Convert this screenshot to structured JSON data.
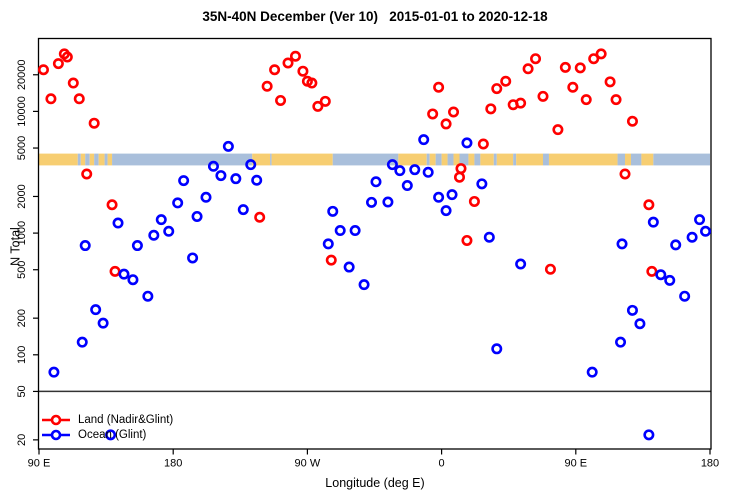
{
  "title": "35N-40N December (Ver 10)   2015-01-01 to 2020-12-18",
  "x_axis": {
    "label": "Longitude (deg E)",
    "ticks": [
      {
        "value": 90,
        "label": "90 E"
      },
      {
        "value": 180,
        "label": "180"
      },
      {
        "value": 270,
        "label": "90 W"
      },
      {
        "value": 360,
        "label": "0"
      },
      {
        "value": 450,
        "label": "90 E"
      },
      {
        "value": 540,
        "label": "180"
      }
    ]
  },
  "y_axis": {
    "label": "N Total",
    "ticks": [
      20,
      50,
      100,
      200,
      500,
      1000,
      2000,
      5000,
      10000,
      20000
    ]
  },
  "legend": {
    "items": [
      {
        "label": "Land (Nadir&Glint)",
        "color": "#FF0000"
      },
      {
        "label": "Ocean (Glint)",
        "color": "#0000FF"
      }
    ]
  },
  "colors": {
    "land_points": "#FF0000",
    "ocean_points": "#0000FF",
    "band_land": "#F7CE72",
    "band_ocean": "#A9BFDB",
    "axis": "#000000",
    "threshold_line": "#333333"
  },
  "chart_data": {
    "type": "scatter",
    "title": "35N-40N December (Ver 10)   2015-01-01 to 2020-12-18",
    "xlabel": "Longitude (deg E)",
    "ylabel": "N Total",
    "x_axis_note": "longitude in degrees east, unwrapped 90E -> 180 -> 90W -> 0 -> 90E -> 180 (90..540)",
    "x_range": [
      90,
      540
    ],
    "y_scale": "log10",
    "y_range": [
      17,
      39000
    ],
    "grid": false,
    "legend_position": "bottom-left",
    "threshold_line_n": 50,
    "series": [
      {
        "name": "Land (Nadir&Glint)",
        "color": "#FF0000",
        "points": [
          [
            93,
            22000
          ],
          [
            98,
            12700
          ],
          [
            103,
            24700
          ],
          [
            107,
            29700
          ],
          [
            109,
            28000
          ],
          [
            113,
            17100
          ],
          [
            117,
            12700
          ],
          [
            122,
            3060
          ],
          [
            127,
            8000
          ],
          [
            139,
            1710
          ],
          [
            141,
            485
          ],
          [
            238,
            1350
          ],
          [
            243,
            16100
          ],
          [
            248,
            22000
          ],
          [
            252,
            12300
          ],
          [
            257,
            25000
          ],
          [
            262,
            28400
          ],
          [
            267,
            21400
          ],
          [
            270,
            17700
          ],
          [
            273,
            17100
          ],
          [
            277,
            11000
          ],
          [
            282,
            12100
          ],
          [
            286,
            600
          ],
          [
            354,
            9530
          ],
          [
            358,
            15800
          ],
          [
            363,
            7890
          ],
          [
            368,
            9890
          ],
          [
            372,
            2880
          ],
          [
            373,
            3390
          ],
          [
            377,
            870
          ],
          [
            382,
            1820
          ],
          [
            388,
            5400
          ],
          [
            393,
            10500
          ],
          [
            397,
            15400
          ],
          [
            403,
            17700
          ],
          [
            408,
            11350
          ],
          [
            413,
            11700
          ],
          [
            418,
            22400
          ],
          [
            423,
            27100
          ],
          [
            428,
            13300
          ],
          [
            433,
            505
          ],
          [
            438,
            7080
          ],
          [
            443,
            23000
          ],
          [
            448,
            15800
          ],
          [
            453,
            22800
          ],
          [
            457,
            12500
          ],
          [
            462,
            27100
          ],
          [
            467,
            29700
          ],
          [
            473,
            17500
          ],
          [
            477,
            12500
          ],
          [
            483,
            3060
          ],
          [
            488,
            8300
          ],
          [
            499,
            1710
          ],
          [
            501,
            485
          ]
        ]
      },
      {
        "name": "Ocean (Glint)",
        "color": "#0000FF",
        "points": [
          [
            100,
            72
          ],
          [
            119,
            127
          ],
          [
            121,
            790
          ],
          [
            128,
            235
          ],
          [
            133,
            182
          ],
          [
            138,
            22
          ],
          [
            143,
            1210
          ],
          [
            147,
            460
          ],
          [
            153,
            414
          ],
          [
            156,
            790
          ],
          [
            163,
            303
          ],
          [
            167,
            960
          ],
          [
            172,
            1290
          ],
          [
            177,
            1035
          ],
          [
            183,
            1770
          ],
          [
            187,
            2700
          ],
          [
            193,
            625
          ],
          [
            196,
            1370
          ],
          [
            202,
            1970
          ],
          [
            207,
            3540
          ],
          [
            212,
            2970
          ],
          [
            217,
            5160
          ],
          [
            222,
            2800
          ],
          [
            227,
            1560
          ],
          [
            232,
            3650
          ],
          [
            236,
            2720
          ],
          [
            284,
            815
          ],
          [
            287,
            1510
          ],
          [
            292,
            1050
          ],
          [
            298,
            526
          ],
          [
            302,
            1050
          ],
          [
            308,
            377
          ],
          [
            313,
            1790
          ],
          [
            316,
            2640
          ],
          [
            324,
            1800
          ],
          [
            327,
            3650
          ],
          [
            332,
            3260
          ],
          [
            337,
            2460
          ],
          [
            342,
            3320
          ],
          [
            348,
            5860
          ],
          [
            351,
            3160
          ],
          [
            358,
            1970
          ],
          [
            363,
            1530
          ],
          [
            367,
            2070
          ],
          [
            377,
            5510
          ],
          [
            387,
            2540
          ],
          [
            392,
            925
          ],
          [
            397,
            112
          ],
          [
            413,
            557
          ],
          [
            461,
            72
          ],
          [
            480,
            127
          ],
          [
            481,
            815
          ],
          [
            488,
            232
          ],
          [
            493,
            180
          ],
          [
            499,
            22
          ],
          [
            502,
            1230
          ],
          [
            507,
            455
          ],
          [
            513,
            409
          ],
          [
            517,
            800
          ],
          [
            523,
            303
          ],
          [
            528,
            925
          ],
          [
            533,
            1290
          ],
          [
            537,
            1035
          ]
        ]
      }
    ],
    "coastline_band": {
      "description": "land/ocean strip drawn across the plot",
      "n_low": 3600,
      "n_high": 4500,
      "land_color": "#F7CE72",
      "ocean_color": "#A9BFDB",
      "segments": [
        {
          "from": 90,
          "to": 116,
          "type": "land"
        },
        {
          "from": 116,
          "to": 118,
          "type": "ocean"
        },
        {
          "from": 118,
          "to": 121,
          "type": "land"
        },
        {
          "from": 121,
          "to": 124,
          "type": "ocean"
        },
        {
          "from": 124,
          "to": 127,
          "type": "land"
        },
        {
          "from": 127,
          "to": 130,
          "type": "ocean"
        },
        {
          "from": 130,
          "to": 134,
          "type": "land"
        },
        {
          "from": 134,
          "to": 136,
          "type": "ocean"
        },
        {
          "from": 136,
          "to": 139,
          "type": "land"
        },
        {
          "from": 139,
          "to": 233,
          "type": "ocean"
        },
        {
          "from": 233,
          "to": 245,
          "type": "land"
        },
        {
          "from": 245,
          "to": 246,
          "type": "ocean"
        },
        {
          "from": 246,
          "to": 287,
          "type": "land"
        },
        {
          "from": 287,
          "to": 331,
          "type": "ocean"
        },
        {
          "from": 331,
          "to": 350,
          "type": "land"
        },
        {
          "from": 350,
          "to": 352,
          "type": "ocean"
        },
        {
          "from": 352,
          "to": 356,
          "type": "land"
        },
        {
          "from": 356,
          "to": 360,
          "type": "ocean"
        },
        {
          "from": 360,
          "to": 364,
          "type": "land"
        },
        {
          "from": 364,
          "to": 368,
          "type": "ocean"
        },
        {
          "from": 368,
          "to": 372,
          "type": "land"
        },
        {
          "from": 372,
          "to": 378,
          "type": "ocean"
        },
        {
          "from": 378,
          "to": 382,
          "type": "land"
        },
        {
          "from": 382,
          "to": 386,
          "type": "ocean"
        },
        {
          "from": 386,
          "to": 395,
          "type": "land"
        },
        {
          "from": 395,
          "to": 397,
          "type": "ocean"
        },
        {
          "from": 397,
          "to": 408,
          "type": "land"
        },
        {
          "from": 408,
          "to": 410,
          "type": "ocean"
        },
        {
          "from": 410,
          "to": 428,
          "type": "land"
        },
        {
          "from": 428,
          "to": 432,
          "type": "ocean"
        },
        {
          "from": 432,
          "to": 478,
          "type": "land"
        },
        {
          "from": 478,
          "to": 483,
          "type": "ocean"
        },
        {
          "from": 483,
          "to": 487,
          "type": "land"
        },
        {
          "from": 487,
          "to": 494,
          "type": "ocean"
        },
        {
          "from": 494,
          "to": 502,
          "type": "land"
        },
        {
          "from": 502,
          "to": 540,
          "type": "ocean"
        }
      ]
    }
  }
}
